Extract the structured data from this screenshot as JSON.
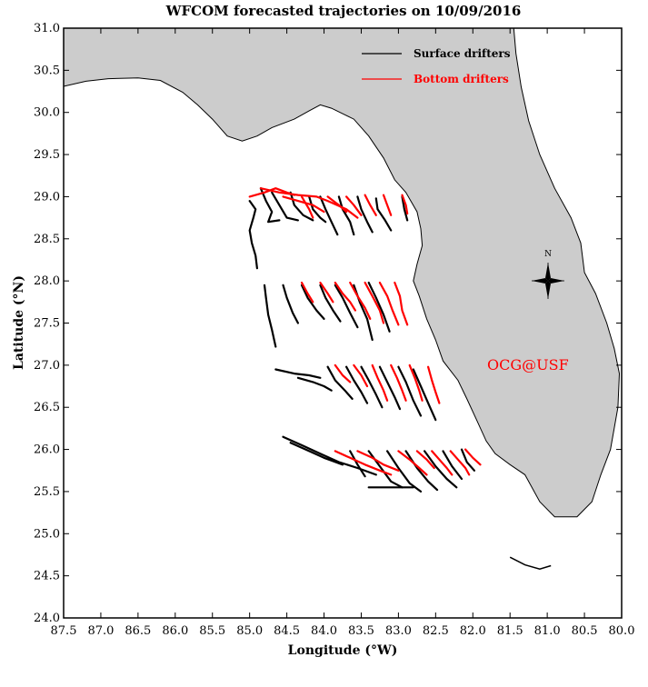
{
  "title": "WFCOM forecasted trajectories on 10/09/2016",
  "xlabel": "Longitude (°W)",
  "ylabel": "Latitude (°N)",
  "x_ticks": [
    "87.5",
    "87.0",
    "86.5",
    "86.0",
    "85.5",
    "85.0",
    "84.5",
    "84.0",
    "83.5",
    "83.0",
    "82.5",
    "82.0",
    "81.5",
    "81.0",
    "80.5",
    "80.0"
  ],
  "y_ticks": [
    "24.0",
    "24.5",
    "25.0",
    "25.5",
    "26.0",
    "26.5",
    "27.0",
    "27.5",
    "28.0",
    "28.5",
    "29.0",
    "29.5",
    "30.0",
    "30.5",
    "31.0"
  ],
  "legend": {
    "surface": {
      "label": "Surface drifters",
      "color": "#000000"
    },
    "bottom": {
      "label": "Bottom drifters",
      "color": "#ff0000"
    }
  },
  "compass_label": "N",
  "watermark": "OCG@USF",
  "colors": {
    "land": "#cccccc",
    "surface": "#000000",
    "bottom": "#ff0000",
    "watermark": "#ff0000"
  },
  "map": {
    "x_range": [
      87.5,
      80.0
    ],
    "y_range": [
      24.0,
      31.0
    ],
    "land_polygon": [
      [
        87.5,
        30.31
      ],
      [
        87.2,
        30.37
      ],
      [
        86.9,
        30.4
      ],
      [
        86.5,
        30.41
      ],
      [
        86.2,
        30.38
      ],
      [
        85.9,
        30.24
      ],
      [
        85.7,
        30.09
      ],
      [
        85.5,
        29.92
      ],
      [
        85.3,
        29.72
      ],
      [
        85.1,
        29.66
      ],
      [
        84.9,
        29.72
      ],
      [
        84.7,
        29.82
      ],
      [
        84.4,
        29.92
      ],
      [
        84.2,
        30.02
      ],
      [
        84.05,
        30.09
      ],
      [
        83.9,
        30.05
      ],
      [
        83.6,
        29.92
      ],
      [
        83.4,
        29.72
      ],
      [
        83.2,
        29.46
      ],
      [
        83.05,
        29.2
      ],
      [
        82.9,
        29.05
      ],
      [
        82.75,
        28.82
      ],
      [
        82.7,
        28.62
      ],
      [
        82.68,
        28.42
      ],
      [
        82.75,
        28.2
      ],
      [
        82.8,
        28.0
      ],
      [
        82.72,
        27.82
      ],
      [
        82.62,
        27.55
      ],
      [
        82.5,
        27.3
      ],
      [
        82.4,
        27.05
      ],
      [
        82.2,
        26.82
      ],
      [
        82.08,
        26.6
      ],
      [
        81.95,
        26.35
      ],
      [
        81.82,
        26.1
      ],
      [
        81.7,
        25.95
      ],
      [
        81.5,
        25.82
      ],
      [
        81.3,
        25.7
      ],
      [
        81.1,
        25.38
      ],
      [
        80.9,
        25.2
      ],
      [
        80.6,
        25.2
      ],
      [
        80.4,
        25.38
      ],
      [
        80.28,
        25.7
      ],
      [
        80.15,
        26.0
      ],
      [
        80.05,
        26.5
      ],
      [
        80.03,
        26.9
      ],
      [
        80.1,
        27.2
      ],
      [
        80.2,
        27.5
      ],
      [
        80.35,
        27.85
      ],
      [
        80.5,
        28.1
      ],
      [
        80.55,
        28.45
      ],
      [
        80.68,
        28.75
      ],
      [
        80.9,
        29.1
      ],
      [
        81.1,
        29.5
      ],
      [
        81.25,
        29.9
      ],
      [
        81.35,
        30.3
      ],
      [
        81.42,
        30.7
      ],
      [
        81.45,
        31.0
      ],
      [
        87.5,
        31.0
      ]
    ],
    "keys": [
      [
        [
          81.5,
          24.72
        ],
        [
          81.3,
          24.63
        ],
        [
          81.1,
          24.58
        ],
        [
          80.95,
          24.62
        ]
      ]
    ]
  },
  "tracks": {
    "surface": [
      [
        [
          85.0,
          28.95
        ],
        [
          84.92,
          28.85
        ],
        [
          84.95,
          28.75
        ],
        [
          85.0,
          28.6
        ],
        [
          84.97,
          28.45
        ],
        [
          84.92,
          28.3
        ],
        [
          84.9,
          28.15
        ]
      ],
      [
        [
          84.85,
          29.1
        ],
        [
          84.78,
          28.95
        ],
        [
          84.7,
          28.82
        ],
        [
          84.75,
          28.7
        ],
        [
          84.6,
          28.72
        ]
      ],
      [
        [
          84.7,
          29.05
        ],
        [
          84.6,
          28.9
        ],
        [
          84.5,
          28.75
        ],
        [
          84.35,
          28.72
        ]
      ],
      [
        [
          84.45,
          29.05
        ],
        [
          84.4,
          28.9
        ],
        [
          84.28,
          28.78
        ],
        [
          84.15,
          28.72
        ]
      ],
      [
        [
          84.2,
          29.0
        ],
        [
          84.15,
          28.85
        ],
        [
          84.05,
          28.75
        ],
        [
          83.98,
          28.7
        ]
      ],
      [
        [
          84.05,
          29.0
        ],
        [
          83.98,
          28.85
        ],
        [
          83.9,
          28.7
        ],
        [
          83.82,
          28.55
        ]
      ],
      [
        [
          83.8,
          29.0
        ],
        [
          83.75,
          28.85
        ],
        [
          83.65,
          28.7
        ],
        [
          83.6,
          28.55
        ]
      ],
      [
        [
          83.55,
          29.0
        ],
        [
          83.5,
          28.85
        ],
        [
          83.42,
          28.7
        ],
        [
          83.35,
          28.58
        ]
      ],
      [
        [
          83.3,
          28.98
        ],
        [
          83.28,
          28.85
        ],
        [
          83.18,
          28.72
        ],
        [
          83.1,
          28.6
        ]
      ],
      [
        [
          82.95,
          29.0
        ],
        [
          82.92,
          28.85
        ],
        [
          82.88,
          28.72
        ]
      ],
      [
        [
          84.8,
          27.95
        ],
        [
          84.78,
          27.8
        ],
        [
          84.75,
          27.6
        ],
        [
          84.7,
          27.42
        ],
        [
          84.65,
          27.22
        ]
      ],
      [
        [
          84.55,
          27.95
        ],
        [
          84.5,
          27.8
        ],
        [
          84.42,
          27.62
        ],
        [
          84.35,
          27.5
        ]
      ],
      [
        [
          84.3,
          27.95
        ],
        [
          84.22,
          27.8
        ],
        [
          84.1,
          27.65
        ],
        [
          84.0,
          27.55
        ]
      ],
      [
        [
          84.05,
          27.95
        ],
        [
          83.98,
          27.8
        ],
        [
          83.88,
          27.65
        ],
        [
          83.78,
          27.52
        ]
      ],
      [
        [
          83.85,
          27.95
        ],
        [
          83.75,
          27.8
        ],
        [
          83.65,
          27.62
        ],
        [
          83.55,
          27.45
        ]
      ],
      [
        [
          83.6,
          27.95
        ],
        [
          83.52,
          27.75
        ],
        [
          83.42,
          27.55
        ],
        [
          83.35,
          27.3
        ]
      ],
      [
        [
          83.4,
          27.98
        ],
        [
          83.3,
          27.8
        ],
        [
          83.2,
          27.6
        ],
        [
          83.12,
          27.4
        ]
      ],
      [
        [
          84.65,
          26.95
        ],
        [
          84.4,
          26.9
        ],
        [
          84.2,
          26.88
        ],
        [
          84.05,
          26.85
        ]
      ],
      [
        [
          84.35,
          26.85
        ],
        [
          84.15,
          26.8
        ],
        [
          84.0,
          26.75
        ],
        [
          83.9,
          26.7
        ]
      ],
      [
        [
          83.95,
          26.98
        ],
        [
          83.85,
          26.82
        ],
        [
          83.72,
          26.7
        ],
        [
          83.62,
          26.6
        ]
      ],
      [
        [
          83.7,
          26.98
        ],
        [
          83.6,
          26.82
        ],
        [
          83.5,
          26.68
        ],
        [
          83.42,
          26.55
        ]
      ],
      [
        [
          83.5,
          26.98
        ],
        [
          83.4,
          26.82
        ],
        [
          83.3,
          26.65
        ],
        [
          83.22,
          26.5
        ]
      ],
      [
        [
          83.25,
          26.98
        ],
        [
          83.15,
          26.8
        ],
        [
          83.05,
          26.62
        ],
        [
          82.98,
          26.48
        ]
      ],
      [
        [
          83.0,
          26.98
        ],
        [
          82.9,
          26.8
        ],
        [
          82.8,
          26.58
        ],
        [
          82.7,
          26.4
        ]
      ],
      [
        [
          82.8,
          26.95
        ],
        [
          82.7,
          26.75
        ],
        [
          82.6,
          26.55
        ],
        [
          82.5,
          26.35
        ]
      ],
      [
        [
          84.55,
          26.15
        ],
        [
          84.3,
          26.05
        ],
        [
          84.05,
          25.95
        ],
        [
          83.8,
          25.85
        ],
        [
          83.55,
          25.78
        ],
        [
          83.3,
          25.7
        ]
      ],
      [
        [
          84.45,
          26.08
        ],
        [
          84.2,
          25.98
        ],
        [
          84.0,
          25.9
        ],
        [
          83.75,
          25.82
        ]
      ],
      [
        [
          83.65,
          25.98
        ],
        [
          83.55,
          25.82
        ],
        [
          83.45,
          25.68
        ]
      ],
      [
        [
          83.4,
          25.98
        ],
        [
          83.25,
          25.8
        ],
        [
          83.1,
          25.62
        ],
        [
          82.95,
          25.55
        ]
      ],
      [
        [
          83.15,
          25.98
        ],
        [
          83.0,
          25.78
        ],
        [
          82.85,
          25.6
        ],
        [
          82.7,
          25.5
        ]
      ],
      [
        [
          82.9,
          25.98
        ],
        [
          82.75,
          25.78
        ],
        [
          82.6,
          25.62
        ],
        [
          82.48,
          25.52
        ]
      ],
      [
        [
          82.65,
          25.98
        ],
        [
          82.5,
          25.8
        ],
        [
          82.35,
          25.65
        ],
        [
          82.22,
          25.55
        ]
      ],
      [
        [
          82.4,
          25.98
        ],
        [
          82.28,
          25.8
        ],
        [
          82.15,
          25.65
        ]
      ],
      [
        [
          82.15,
          26.0
        ],
        [
          82.08,
          25.85
        ],
        [
          81.98,
          25.75
        ]
      ],
      [
        [
          83.4,
          25.55
        ],
        [
          83.1,
          25.55
        ],
        [
          82.8,
          25.55
        ]
      ]
    ],
    "bottom": [
      [
        [
          85.0,
          29.0
        ],
        [
          84.8,
          29.05
        ],
        [
          84.65,
          29.1
        ],
        [
          84.5,
          29.05
        ],
        [
          84.4,
          29.02
        ]
      ],
      [
        [
          84.85,
          29.1
        ],
        [
          84.6,
          29.05
        ],
        [
          84.35,
          29.02
        ],
        [
          84.1,
          29.0
        ],
        [
          83.95,
          28.95
        ],
        [
          83.7,
          28.85
        ],
        [
          83.55,
          28.75
        ]
      ],
      [
        [
          84.55,
          29.0
        ],
        [
          84.35,
          28.95
        ],
        [
          84.15,
          28.9
        ],
        [
          84.0,
          28.82
        ]
      ],
      [
        [
          84.3,
          29.0
        ],
        [
          84.2,
          28.85
        ],
        [
          84.15,
          28.75
        ]
      ],
      [
        [
          83.95,
          29.0
        ],
        [
          83.8,
          28.9
        ],
        [
          83.7,
          28.82
        ]
      ],
      [
        [
          83.7,
          29.0
        ],
        [
          83.6,
          28.9
        ],
        [
          83.5,
          28.78
        ]
      ],
      [
        [
          83.45,
          29.02
        ],
        [
          83.38,
          28.9
        ],
        [
          83.3,
          28.78
        ]
      ],
      [
        [
          83.2,
          29.02
        ],
        [
          83.15,
          28.9
        ],
        [
          83.1,
          28.78
        ]
      ],
      [
        [
          82.95,
          29.02
        ],
        [
          82.9,
          28.9
        ],
        [
          82.88,
          28.8
        ]
      ],
      [
        [
          84.3,
          27.98
        ],
        [
          84.22,
          27.85
        ],
        [
          84.15,
          27.75
        ]
      ],
      [
        [
          84.05,
          27.98
        ],
        [
          83.95,
          27.85
        ],
        [
          83.88,
          27.75
        ]
      ],
      [
        [
          83.85,
          27.98
        ],
        [
          83.75,
          27.85
        ],
        [
          83.65,
          27.75
        ],
        [
          83.58,
          27.65
        ]
      ],
      [
        [
          83.65,
          27.98
        ],
        [
          83.55,
          27.82
        ],
        [
          83.45,
          27.68
        ],
        [
          83.38,
          27.55
        ]
      ],
      [
        [
          83.45,
          27.98
        ],
        [
          83.35,
          27.82
        ],
        [
          83.25,
          27.65
        ],
        [
          83.2,
          27.5
        ]
      ],
      [
        [
          83.25,
          27.98
        ],
        [
          83.15,
          27.82
        ],
        [
          83.08,
          27.65
        ],
        [
          83.0,
          27.48
        ]
      ],
      [
        [
          83.05,
          27.98
        ],
        [
          82.98,
          27.82
        ],
        [
          82.95,
          27.65
        ],
        [
          82.88,
          27.48
        ]
      ],
      [
        [
          83.85,
          27.0
        ],
        [
          83.75,
          26.88
        ],
        [
          83.65,
          26.8
        ]
      ],
      [
        [
          83.6,
          27.0
        ],
        [
          83.5,
          26.88
        ],
        [
          83.42,
          26.75
        ]
      ],
      [
        [
          83.35,
          27.0
        ],
        [
          83.28,
          26.85
        ],
        [
          83.2,
          26.7
        ],
        [
          83.15,
          26.58
        ]
      ],
      [
        [
          83.1,
          27.0
        ],
        [
          83.02,
          26.85
        ],
        [
          82.95,
          26.7
        ],
        [
          82.9,
          26.58
        ]
      ],
      [
        [
          82.85,
          27.0
        ],
        [
          82.78,
          26.85
        ],
        [
          82.72,
          26.7
        ],
        [
          82.68,
          26.58
        ]
      ],
      [
        [
          82.6,
          26.98
        ],
        [
          82.55,
          26.82
        ],
        [
          82.5,
          26.68
        ],
        [
          82.45,
          26.55
        ]
      ],
      [
        [
          83.85,
          25.98
        ],
        [
          83.65,
          25.9
        ],
        [
          83.45,
          25.82
        ],
        [
          83.25,
          25.75
        ],
        [
          83.1,
          25.7
        ]
      ],
      [
        [
          83.55,
          25.98
        ],
        [
          83.35,
          25.9
        ],
        [
          83.2,
          25.82
        ],
        [
          83.0,
          25.75
        ]
      ],
      [
        [
          83.0,
          25.98
        ],
        [
          82.85,
          25.88
        ],
        [
          82.72,
          25.78
        ],
        [
          82.62,
          25.7
        ]
      ],
      [
        [
          82.75,
          25.98
        ],
        [
          82.62,
          25.88
        ],
        [
          82.52,
          25.78
        ]
      ],
      [
        [
          82.55,
          25.98
        ],
        [
          82.45,
          25.88
        ],
        [
          82.35,
          25.78
        ],
        [
          82.28,
          25.7
        ]
      ],
      [
        [
          82.3,
          25.98
        ],
        [
          82.2,
          25.88
        ],
        [
          82.1,
          25.78
        ],
        [
          82.05,
          25.7
        ]
      ],
      [
        [
          82.1,
          26.0
        ],
        [
          82.0,
          25.9
        ],
        [
          81.9,
          25.82
        ]
      ]
    ]
  }
}
